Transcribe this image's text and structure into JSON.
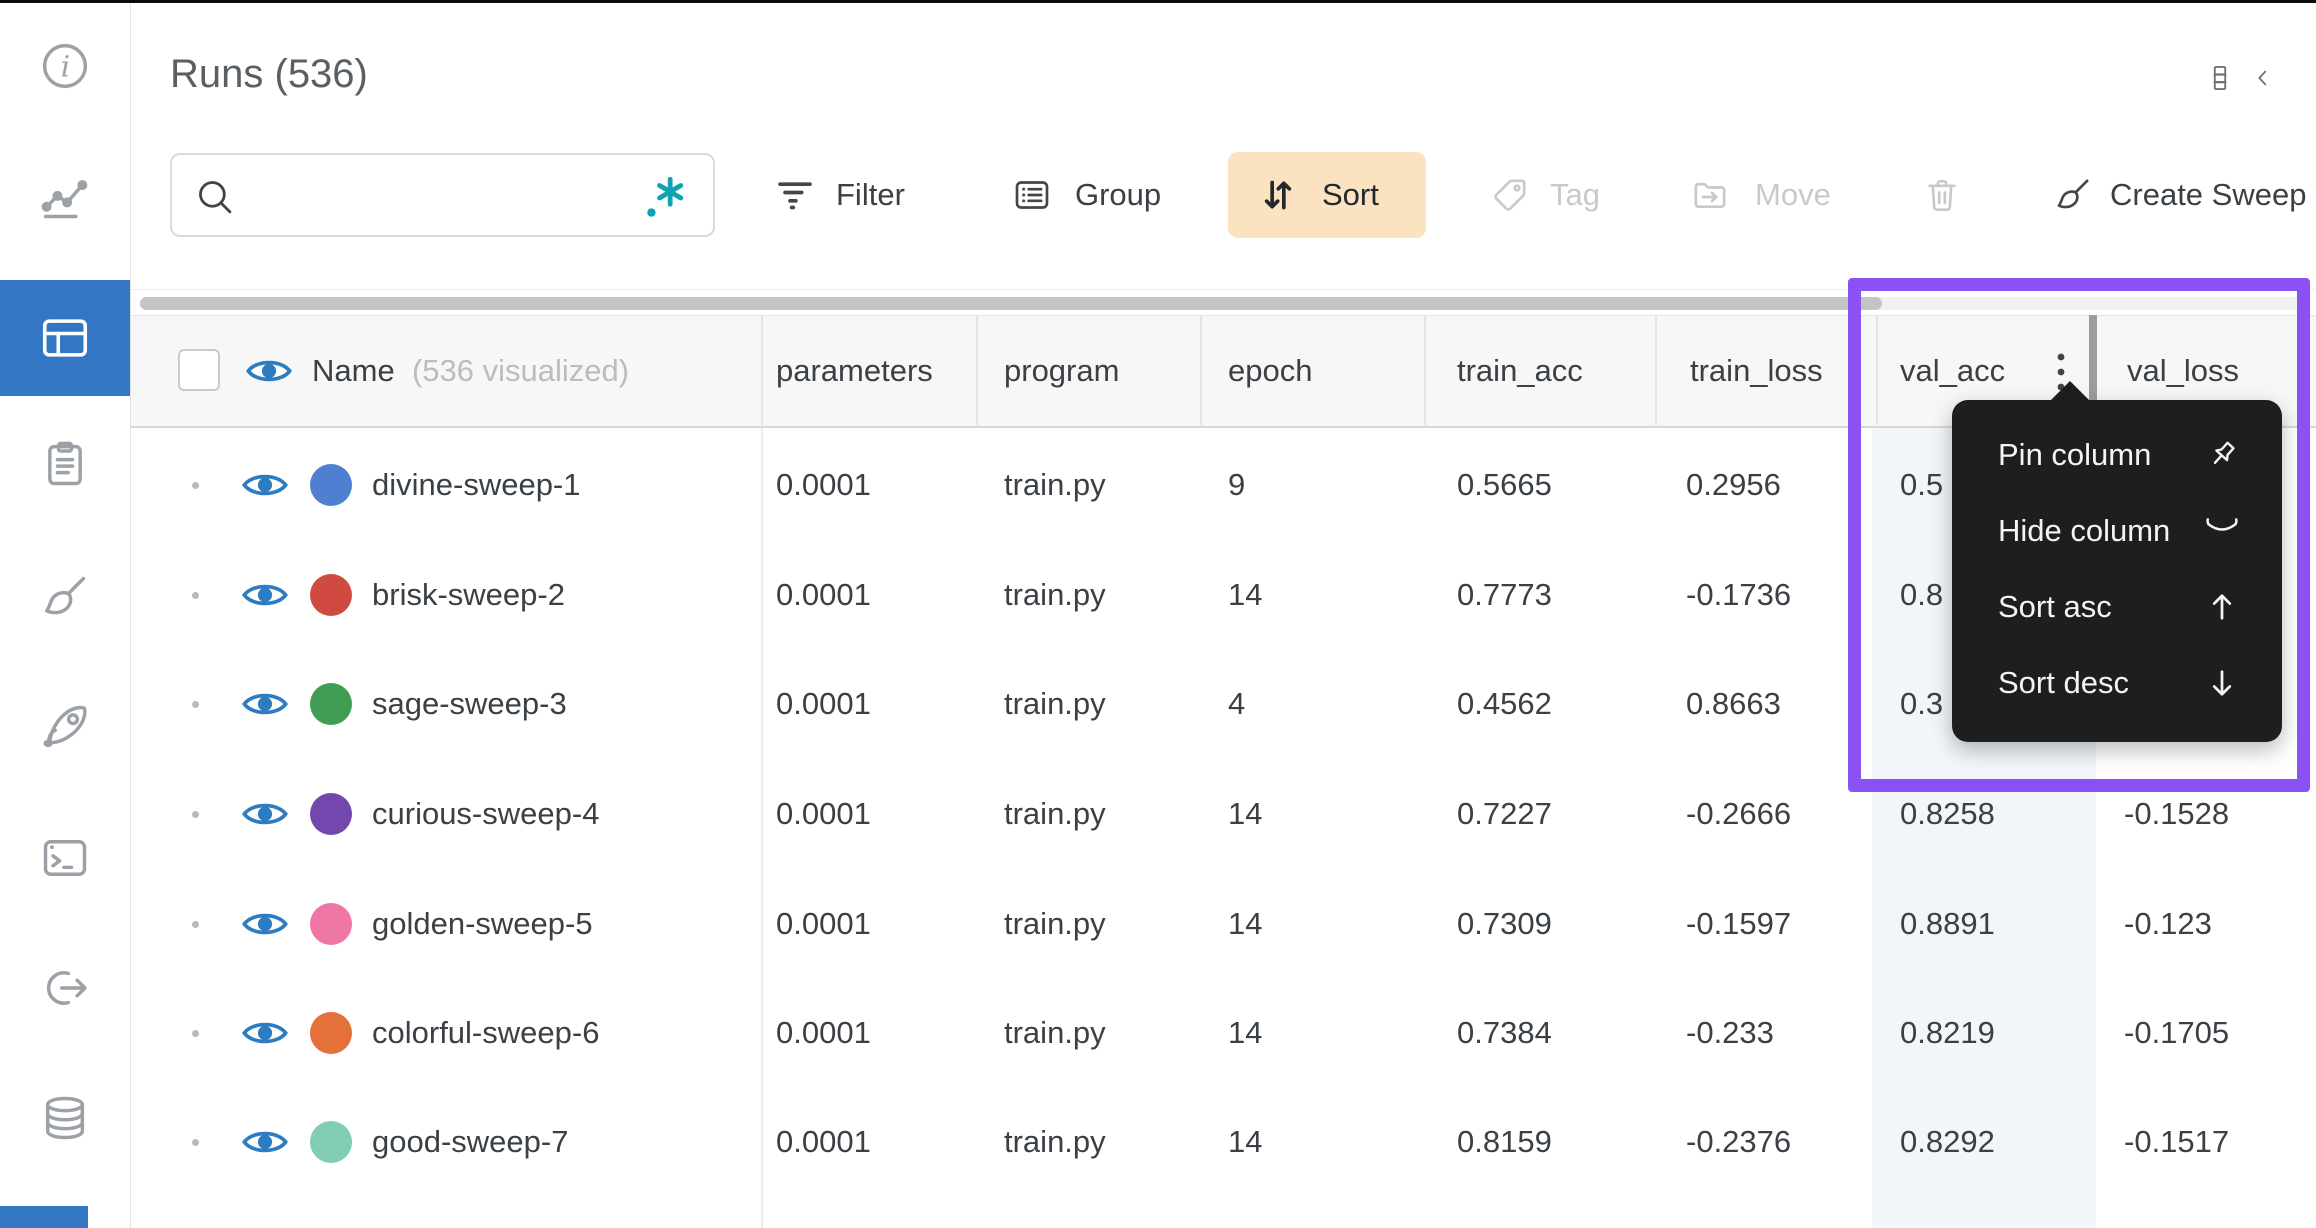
{
  "header": {
    "title": "Runs (536)"
  },
  "top_right": {
    "icons": [
      "columns-manager",
      "collapse-panel-chevron"
    ]
  },
  "sidebar": {
    "selected_index": 2,
    "items": [
      {
        "name": "info"
      },
      {
        "name": "charts"
      },
      {
        "name": "runs-table"
      },
      {
        "name": "notes"
      },
      {
        "name": "sweeps-broom"
      },
      {
        "name": "launch-rocket"
      },
      {
        "name": "logs-terminal"
      },
      {
        "name": "automations-link"
      },
      {
        "name": "artifacts-database"
      }
    ]
  },
  "toolbar": {
    "search": {
      "value": "",
      "placeholder": "",
      "icons": [
        "magnifier",
        "regex"
      ]
    },
    "buttons": [
      {
        "label": "Filter",
        "icon": "filter",
        "state": "enabled"
      },
      {
        "label": "Group",
        "icon": "group",
        "state": "enabled"
      },
      {
        "label": "Sort",
        "icon": "sort",
        "state": "active"
      },
      {
        "label": "Tag",
        "icon": "tag",
        "state": "disabled"
      },
      {
        "label": "Move",
        "icon": "move",
        "state": "disabled"
      },
      {
        "label": "",
        "icon": "trash",
        "state": "disabled"
      },
      {
        "label": "Create Sweep",
        "icon": "broom",
        "state": "enabled"
      }
    ]
  },
  "table": {
    "name_column": {
      "label": "Name",
      "sub_label": "(536 visualized)"
    },
    "columns": [
      "parameters",
      "program",
      "epoch",
      "train_acc",
      "train_loss",
      "val_acc",
      "val_loss"
    ],
    "menu_column": "val_acc",
    "rows": [
      {
        "name": "divine-sweep-1",
        "color": "#4e7fd0",
        "values": [
          "0.0001",
          "train.py",
          "9",
          "0.5665",
          "0.2956",
          "0.5",
          ""
        ]
      },
      {
        "name": "brisk-sweep-2",
        "color": "#d14a42",
        "values": [
          "0.0001",
          "train.py",
          "14",
          "0.7773",
          "-0.1736",
          "0.8",
          ""
        ]
      },
      {
        "name": "sage-sweep-3",
        "color": "#3f9e54",
        "values": [
          "0.0001",
          "train.py",
          "4",
          "0.4562",
          "0.8663",
          "0.3",
          ""
        ]
      },
      {
        "name": "curious-sweep-4",
        "color": "#7447ae",
        "values": [
          "0.0001",
          "train.py",
          "14",
          "0.7227",
          "-0.2666",
          "0.8258",
          "-0.1528"
        ]
      },
      {
        "name": "golden-sweep-5",
        "color": "#ef77a5",
        "values": [
          "0.0001",
          "train.py",
          "14",
          "0.7309",
          "-0.1597",
          "0.8891",
          "-0.123"
        ]
      },
      {
        "name": "colorful-sweep-6",
        "color": "#e4703a",
        "values": [
          "0.0001",
          "train.py",
          "14",
          "0.7384",
          "-0.233",
          "0.8219",
          "-0.1705"
        ]
      },
      {
        "name": "good-sweep-7",
        "color": "#80cdb1",
        "values": [
          "0.0001",
          "train.py",
          "14",
          "0.8159",
          "-0.2376",
          "0.8292",
          "-0.1517"
        ]
      }
    ]
  },
  "column_menu": {
    "items": [
      {
        "label": "Pin column",
        "icon": "pin"
      },
      {
        "label": "Hide column",
        "icon": "eye-closed"
      },
      {
        "label": "Sort asc",
        "icon": "arrow-up"
      },
      {
        "label": "Sort desc",
        "icon": "arrow-down"
      }
    ]
  },
  "colors": {
    "accent_blue": "#3276c4",
    "eye_blue": "#2d7cc1",
    "sort_active_bg": "#fbe2c1",
    "annotation_purple": "#8a52f5",
    "menu_bg": "#1d1e20",
    "val_acc_tint": "#f0f6fa",
    "disabled": "#c9c9c9"
  }
}
